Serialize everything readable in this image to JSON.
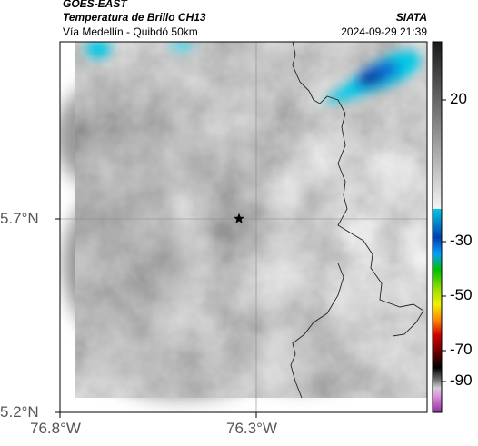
{
  "header": {
    "satellite": "GOES-EAST",
    "product": "Temperatura de Brillo CH13",
    "region": "Vía Medellín - Quibdó 50km",
    "institution": "SIATA",
    "datetime": "2024-09-29 21:39"
  },
  "map": {
    "x_ticks": [
      "76.8°W",
      "76.3°W"
    ],
    "y_ticks": [
      "5.7°N",
      "5.2°N"
    ],
    "marker_icon": "star-icon",
    "gridlines": true
  },
  "colorbar": {
    "ticks": [
      "20",
      "-30",
      "-50",
      "-70",
      "-90"
    ],
    "colors": {
      "gray_top": "#1a1a1a",
      "gray_bottom": "#f2f2f2",
      "cyan": "#00c8e6",
      "blue": "#0040b0",
      "green": "#00c000",
      "yellow": "#f0f000",
      "orange": "#ff8000",
      "red": "#d00000",
      "black": "#000000",
      "magenta": "#c040c0"
    }
  }
}
